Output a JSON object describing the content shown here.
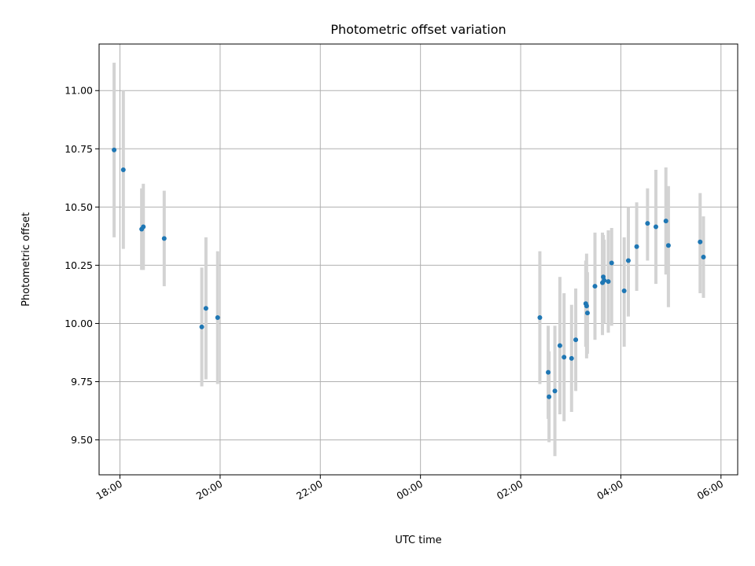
{
  "chart_data": {
    "type": "scatter",
    "title": "Photometric offset variation",
    "xlabel": "UTC time",
    "ylabel": "Photometric offset",
    "grid": true,
    "x_axis": {
      "kind": "time",
      "range": [
        "2024-01-01T17:35",
        "2024-01-02T06:20"
      ],
      "ticks": [
        {
          "time": "2024-01-01T18:00",
          "label": "18:00"
        },
        {
          "time": "2024-01-01T20:00",
          "label": "20:00"
        },
        {
          "time": "2024-01-01T22:00",
          "label": "22:00"
        },
        {
          "time": "2024-01-02T00:00",
          "label": "00:00"
        },
        {
          "time": "2024-01-02T02:00",
          "label": "02:00"
        },
        {
          "time": "2024-01-02T04:00",
          "label": "04:00"
        },
        {
          "time": "2024-01-02T06:00",
          "label": "06:00"
        }
      ]
    },
    "y_axis": {
      "range": [
        9.35,
        11.2
      ],
      "ticks": [
        {
          "value": 9.5,
          "label": "9.50"
        },
        {
          "value": 9.75,
          "label": "9.75"
        },
        {
          "value": 10.0,
          "label": "10.00"
        },
        {
          "value": 10.25,
          "label": "10.25"
        },
        {
          "value": 10.5,
          "label": "10.50"
        },
        {
          "value": 10.75,
          "label": "10.75"
        },
        {
          "value": 11.0,
          "label": "11.00"
        }
      ]
    },
    "colors": {
      "marker": "#1f77b4",
      "errorbar": "#d3d3d3",
      "grid": "#b0b0b0"
    },
    "points": [
      {
        "t": "2024-01-01T17:53",
        "y": 10.745,
        "lo": 10.37,
        "hi": 11.12
      },
      {
        "t": "2024-01-01T18:04",
        "y": 10.66,
        "lo": 10.32,
        "hi": 11.0
      },
      {
        "t": "2024-01-01T18:26",
        "y": 10.405,
        "lo": 10.23,
        "hi": 10.58
      },
      {
        "t": "2024-01-01T18:28",
        "y": 10.415,
        "lo": 10.23,
        "hi": 10.6
      },
      {
        "t": "2024-01-01T18:53",
        "y": 10.365,
        "lo": 10.16,
        "hi": 10.57
      },
      {
        "t": "2024-01-01T19:38",
        "y": 9.985,
        "lo": 9.73,
        "hi": 10.24
      },
      {
        "t": "2024-01-01T19:43",
        "y": 10.065,
        "lo": 9.76,
        "hi": 10.37
      },
      {
        "t": "2024-01-01T19:57",
        "y": 10.025,
        "lo": 9.74,
        "hi": 10.31
      },
      {
        "t": "2024-01-02T02:23",
        "y": 10.025,
        "lo": 9.74,
        "hi": 10.31
      },
      {
        "t": "2024-01-02T02:33",
        "y": 9.79,
        "lo": 9.59,
        "hi": 9.99
      },
      {
        "t": "2024-01-02T02:34",
        "y": 9.685,
        "lo": 9.49,
        "hi": 9.88
      },
      {
        "t": "2024-01-02T02:41",
        "y": 9.71,
        "lo": 9.43,
        "hi": 9.99
      },
      {
        "t": "2024-01-02T02:47",
        "y": 9.905,
        "lo": 9.61,
        "hi": 10.2
      },
      {
        "t": "2024-01-02T02:52",
        "y": 9.855,
        "lo": 9.58,
        "hi": 10.13
      },
      {
        "t": "2024-01-02T03:01",
        "y": 9.85,
        "lo": 9.62,
        "hi": 10.08
      },
      {
        "t": "2024-01-02T03:06",
        "y": 9.93,
        "lo": 9.71,
        "hi": 10.15
      },
      {
        "t": "2024-01-02T03:18",
        "y": 10.085,
        "lo": 9.9,
        "hi": 10.27
      },
      {
        "t": "2024-01-02T03:19",
        "y": 10.075,
        "lo": 9.85,
        "hi": 10.3
      },
      {
        "t": "2024-01-02T03:20",
        "y": 10.045,
        "lo": 9.87,
        "hi": 10.22
      },
      {
        "t": "2024-01-02T03:29",
        "y": 10.16,
        "lo": 9.93,
        "hi": 10.39
      },
      {
        "t": "2024-01-02T03:38",
        "y": 10.175,
        "lo": 9.95,
        "hi": 10.39
      },
      {
        "t": "2024-01-02T03:39",
        "y": 10.2,
        "lo": 10.02,
        "hi": 10.38
      },
      {
        "t": "2024-01-02T03:40",
        "y": 10.185,
        "lo": 10.0,
        "hi": 10.36
      },
      {
        "t": "2024-01-02T03:45",
        "y": 10.18,
        "lo": 9.96,
        "hi": 10.4
      },
      {
        "t": "2024-01-02T03:49",
        "y": 10.26,
        "lo": 9.99,
        "hi": 10.41
      },
      {
        "t": "2024-01-02T04:04",
        "y": 10.14,
        "lo": 9.9,
        "hi": 10.37
      },
      {
        "t": "2024-01-02T04:09",
        "y": 10.27,
        "lo": 10.03,
        "hi": 10.5
      },
      {
        "t": "2024-01-02T04:19",
        "y": 10.33,
        "lo": 10.14,
        "hi": 10.52
      },
      {
        "t": "2024-01-02T04:32",
        "y": 10.43,
        "lo": 10.27,
        "hi": 10.58
      },
      {
        "t": "2024-01-02T04:42",
        "y": 10.415,
        "lo": 10.17,
        "hi": 10.66
      },
      {
        "t": "2024-01-02T04:54",
        "y": 10.44,
        "lo": 10.21,
        "hi": 10.67
      },
      {
        "t": "2024-01-02T04:57",
        "y": 10.335,
        "lo": 10.07,
        "hi": 10.59
      },
      {
        "t": "2024-01-02T05:35",
        "y": 10.35,
        "lo": 10.13,
        "hi": 10.56
      },
      {
        "t": "2024-01-02T05:39",
        "y": 10.285,
        "lo": 10.11,
        "hi": 10.46
      }
    ]
  }
}
